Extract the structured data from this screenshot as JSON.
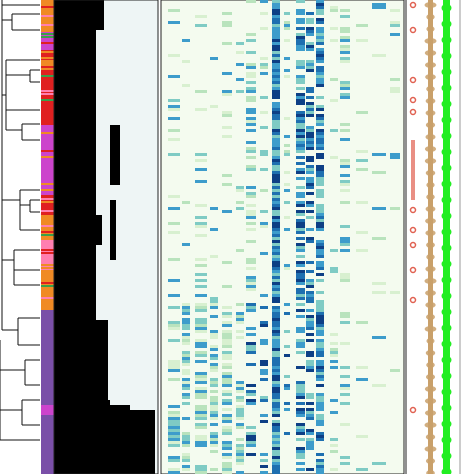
{
  "figure": {
    "kind": "phylogenetic tree with aligned annotation tracks (cropped)",
    "text_visible": false
  },
  "colors": {
    "tree_line": "#111111",
    "group_magenta": "#cc44cc",
    "group_purple": "#7a4fa8",
    "group_red": "#e02020",
    "group_orange": "#f08a24",
    "group_green": "#3aa04a",
    "group_pink": "#ff7fb0",
    "presence": "#000000",
    "absence_panel": "#eef5f5",
    "heatmap_bg": "#f4fbef",
    "heat_levels": [
      "#d8f0d0",
      "#b9e3bd",
      "#7fcbc4",
      "#3d9ccb",
      "#1e6fb0",
      "#0d3f85"
    ],
    "panel_border": "#222222",
    "dot_track": "#e06050",
    "brown_track": "#c9a06a",
    "green_track": "#22ee22"
  },
  "tracks": [
    "tree",
    "group-color-strip",
    "presence-absence-panel",
    "expression-heatmap",
    "red-dot-track",
    "brown-bar-track",
    "green-bar-track"
  ]
}
